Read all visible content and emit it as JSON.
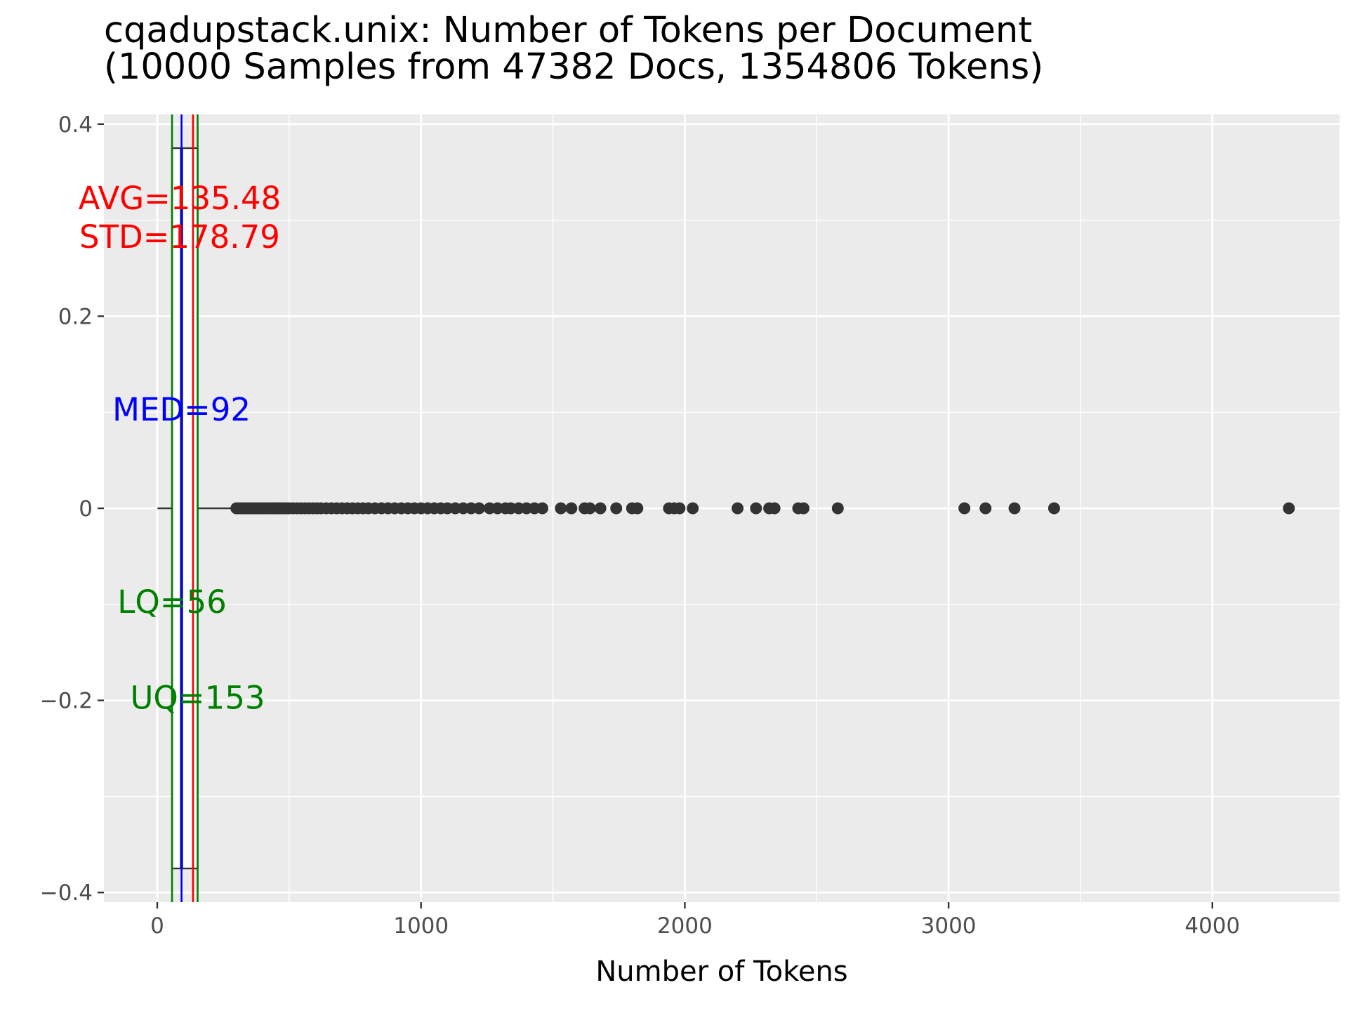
{
  "chart_data": {
    "type": "boxplot",
    "title_line1": "cqadupstack.unix: Number of Tokens per Document",
    "title_line2": "(10000 Samples from 47382 Docs, 1354806 Tokens)",
    "xlabel": "Number of Tokens",
    "ylabel": "",
    "xlim": [
      -200,
      4500
    ],
    "ylim": [
      -0.41,
      0.41
    ],
    "x_ticks": [
      0,
      1000,
      2000,
      3000,
      4000
    ],
    "x_tick_labels": [
      "0",
      "1000",
      "2000",
      "3000",
      "4000"
    ],
    "y_ticks": [
      0.4,
      0.2,
      0,
      -0.2,
      -0.4
    ],
    "y_tick_labels": [
      "0.4",
      "0.2",
      "0",
      "−0.2",
      "−0.4"
    ],
    "grid": true,
    "box": {
      "q1": 56,
      "median": 92,
      "q3": 153,
      "whisker_low": 1,
      "whisker_high": 298,
      "width": 0.75
    },
    "stats": {
      "avg": 135.48,
      "std": 178.79,
      "median": 92,
      "lq": 56,
      "uq": 153,
      "avg_label": "AVG=135.48",
      "std_label": "STD=178.79",
      "med_label": "MED=92",
      "lq_label": "LQ=56",
      "uq_label": "UQ=153"
    },
    "stat_label_positions": {
      "avg": {
        "x": 85,
        "y": 0.32
      },
      "std": {
        "x": 85,
        "y": 0.28
      },
      "med": {
        "x": 92,
        "y": 0.1
      },
      "lq": {
        "x": 56,
        "y": -0.1
      },
      "uq": {
        "x": 153,
        "y": -0.2
      }
    },
    "outliers": [
      300,
      310,
      320,
      330,
      340,
      350,
      360,
      370,
      380,
      390,
      400,
      410,
      420,
      430,
      440,
      450,
      460,
      470,
      480,
      490,
      500,
      515,
      530,
      545,
      560,
      575,
      590,
      605,
      620,
      640,
      660,
      680,
      700,
      720,
      740,
      760,
      780,
      800,
      825,
      850,
      875,
      900,
      925,
      950,
      975,
      1000,
      1025,
      1050,
      1075,
      1100,
      1130,
      1160,
      1190,
      1220,
      1260,
      1290,
      1320,
      1340,
      1370,
      1400,
      1430,
      1460,
      1530,
      1570,
      1620,
      1640,
      1680,
      1740,
      1800,
      1820,
      1940,
      1960,
      1980,
      2030,
      2200,
      2270,
      2320,
      2340,
      2430,
      2450,
      2580,
      3060,
      3140,
      3250,
      3400,
      4290
    ],
    "colors": {
      "panel": "#ebebeb",
      "grid": "#ffffff",
      "box": "#333333",
      "point": "#333333",
      "avg": "#ff0000",
      "median": "#0000ff",
      "quartile": "#008000",
      "tick": "#4d4d4d"
    }
  }
}
